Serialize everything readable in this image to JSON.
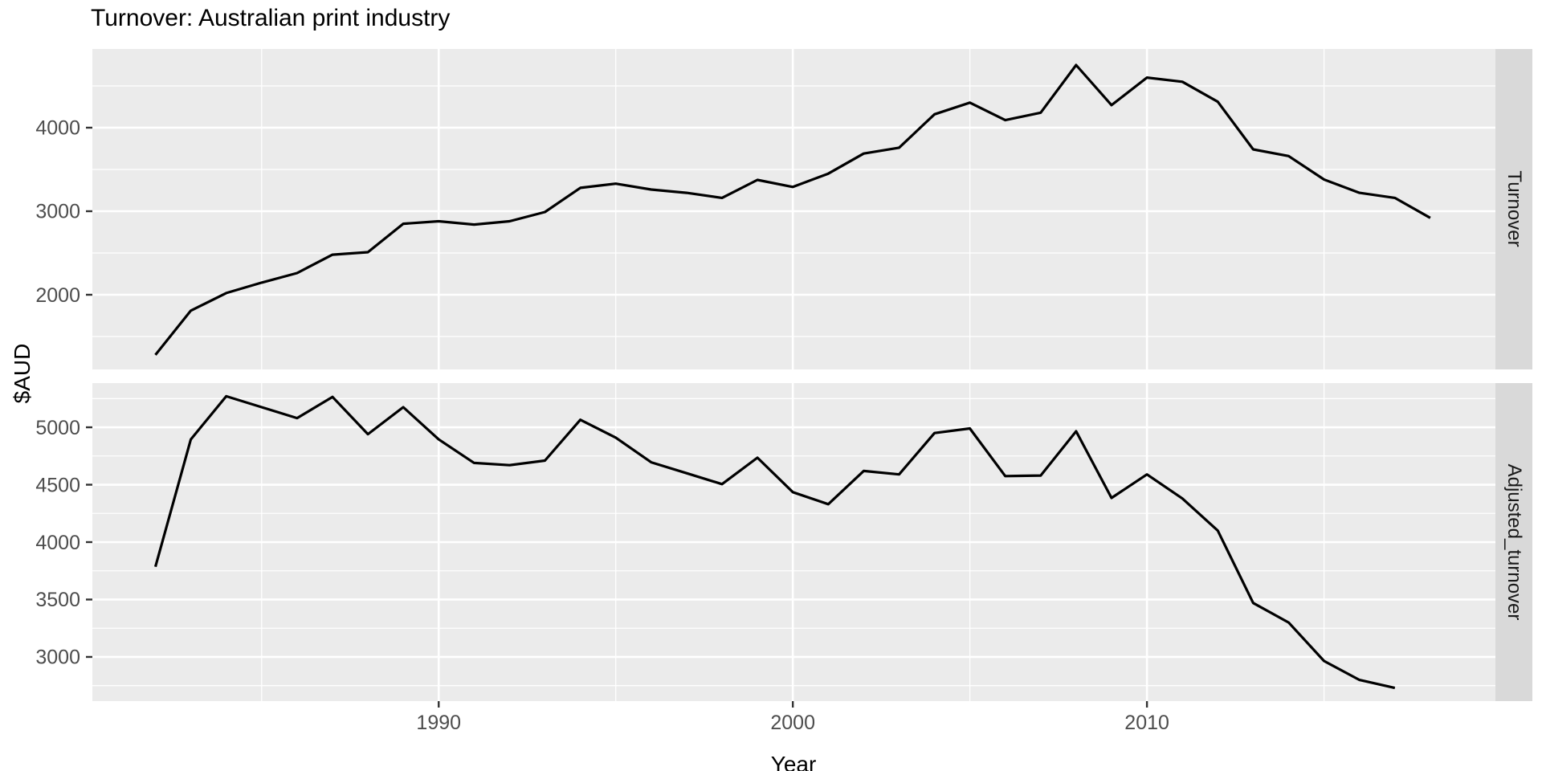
{
  "chart_data": {
    "type": "line",
    "title": "Turnover: Australian print industry",
    "xlabel": "Year",
    "ylabel": "$AUD",
    "legend": "none",
    "grid": true,
    "facet_position": "right-strips",
    "colors": {
      "panel_bg": "#ebebeb",
      "strip_bg": "#d9d9d9",
      "grid": "#ffffff",
      "line": "#000000",
      "tick_mark": "#333333",
      "tick_label": "#4d4d4d",
      "strip_text": "#1a1a1a"
    },
    "x_axis": {
      "domain": [
        1980.22,
        2019.84
      ],
      "major_ticks": [
        1990,
        2000,
        2010
      ],
      "tick_labels": [
        "1990",
        "2000",
        "2010"
      ],
      "minor_breaks": [
        1985,
        1995,
        2005,
        2015
      ]
    },
    "facets": [
      {
        "name": "Turnover",
        "ylim": [
          1106,
          4942
        ],
        "y_ticks": [
          4000,
          3000,
          2000
        ],
        "y_tick_labels": [
          "4000",
          "3000",
          "2000"
        ],
        "y_minor": [
          4500,
          3500,
          2500,
          1500
        ],
        "x": [
          1982,
          1983,
          1984,
          1985,
          1986,
          1987,
          1988,
          1989,
          1990,
          1991,
          1992,
          1993,
          1994,
          1995,
          1996,
          1997,
          1998,
          1999,
          2000,
          2001,
          2002,
          2003,
          2004,
          2005,
          2006,
          2007,
          2008,
          2009,
          2010,
          2011,
          2012,
          2013,
          2014,
          2015,
          2016,
          2017,
          2018
        ],
        "values": [
          1280,
          1810,
          2020,
          2145,
          2260,
          2480,
          2510,
          2850,
          2880,
          2840,
          2880,
          2990,
          3280,
          3330,
          3260,
          3220,
          3160,
          3375,
          3290,
          3450,
          3690,
          3760,
          4160,
          4300,
          4090,
          4180,
          4750,
          4270,
          4600,
          4550,
          4310,
          3740,
          3660,
          3380,
          3220,
          3160,
          2920
        ]
      },
      {
        "name": "Adjusted_turnover",
        "ylim": [
          2615,
          5385
        ],
        "y_ticks": [
          5000,
          4500,
          4000,
          3500,
          3000
        ],
        "y_tick_labels": [
          "5000",
          "4500",
          "4000",
          "3500",
          "3000"
        ],
        "y_minor": [
          5250,
          4750,
          4250,
          3750,
          3250,
          2750
        ],
        "x": [
          1982,
          1983,
          1984,
          1985,
          1986,
          1987,
          1988,
          1989,
          1990,
          1991,
          1992,
          1993,
          1994,
          1995,
          1996,
          1997,
          1998,
          1999,
          2000,
          2001,
          2002,
          2003,
          2004,
          2005,
          2006,
          2007,
          2008,
          2009,
          2010,
          2011,
          2012,
          2013,
          2014,
          2015,
          2016,
          2017
        ],
        "values": [
          3785,
          4895,
          5270,
          5175,
          5080,
          5265,
          4940,
          5175,
          4895,
          4690,
          4670,
          4710,
          5065,
          4910,
          4695,
          4600,
          4505,
          4735,
          4435,
          4330,
          4620,
          4590,
          4950,
          4990,
          4575,
          4580,
          4965,
          4385,
          4590,
          4380,
          4100,
          3470,
          3300,
          2965,
          2800,
          2730
        ]
      }
    ]
  }
}
